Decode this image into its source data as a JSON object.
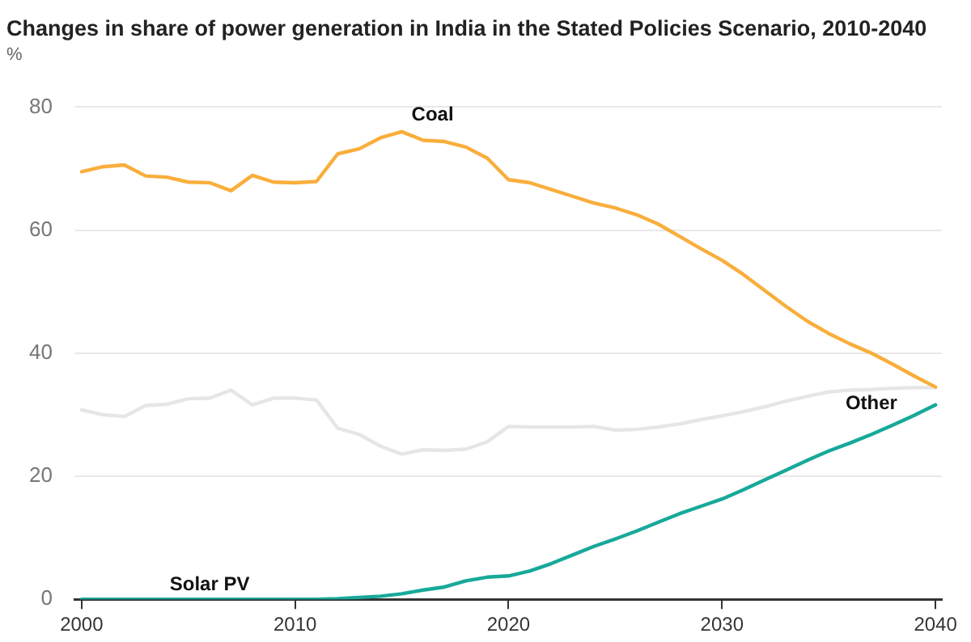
{
  "chart_data": {
    "type": "line",
    "title": "Changes in share of power generation in India in the Stated Policies Scenario, 2010-2040",
    "ylabel": "%",
    "x": [
      2000,
      2001,
      2002,
      2003,
      2004,
      2005,
      2006,
      2007,
      2008,
      2009,
      2010,
      2011,
      2012,
      2013,
      2014,
      2015,
      2016,
      2017,
      2018,
      2019,
      2020,
      2021,
      2022,
      2023,
      2024,
      2025,
      2026,
      2027,
      2028,
      2029,
      2030,
      2031,
      2032,
      2033,
      2034,
      2035,
      2036,
      2037,
      2038,
      2039,
      2040
    ],
    "series": [
      {
        "name": "Coal",
        "color": "#f9ae3b",
        "values": [
          69.5,
          70.3,
          70.6,
          68.8,
          68.6,
          67.8,
          67.7,
          66.4,
          68.9,
          67.8,
          67.7,
          67.9,
          72.4,
          73.2,
          75.0,
          76.0,
          74.6,
          74.4,
          73.5,
          71.7,
          68.2,
          67.7,
          66.6,
          65.5,
          64.4,
          63.6,
          62.5,
          61.0,
          59.0,
          57.0,
          55.1,
          52.8,
          50.2,
          47.6,
          45.2,
          43.2,
          41.5,
          40.0,
          38.2,
          36.3,
          34.5
        ]
      },
      {
        "name": "Other",
        "color": "#e6e6e6",
        "values": [
          30.8,
          30.0,
          29.7,
          31.5,
          31.7,
          32.6,
          32.7,
          34.0,
          31.6,
          32.7,
          32.7,
          32.4,
          27.8,
          26.8,
          24.9,
          23.6,
          24.3,
          24.2,
          24.4,
          25.6,
          28.1,
          28.0,
          28.0,
          28.0,
          28.1,
          27.5,
          27.6,
          28.0,
          28.5,
          29.2,
          29.8,
          30.5,
          31.3,
          32.2,
          33.0,
          33.7,
          34.0,
          34.1,
          34.3,
          34.4,
          34.4
        ]
      },
      {
        "name": "Solar PV",
        "color": "#17a99a",
        "values": [
          0,
          0,
          0,
          0,
          0,
          0,
          0,
          0,
          0,
          0,
          0,
          0,
          0.1,
          0.3,
          0.5,
          0.9,
          1.5,
          2.0,
          3.0,
          3.6,
          3.8,
          4.6,
          5.8,
          7.2,
          8.6,
          9.8,
          11.1,
          12.5,
          13.9,
          15.1,
          16.3,
          17.8,
          19.4,
          21.0,
          22.6,
          24.1,
          25.4,
          26.8,
          28.3,
          29.9,
          31.6
        ]
      }
    ],
    "xlim": [
      1999.7,
      2040.3
    ],
    "xticks": [
      2000,
      2010,
      2020,
      2030,
      2040
    ],
    "ylim": [
      0,
      80
    ],
    "yticks": [
      0,
      20,
      40,
      60,
      80
    ],
    "grid": "y",
    "legend": false,
    "marker": "none",
    "line_style": "solid"
  }
}
